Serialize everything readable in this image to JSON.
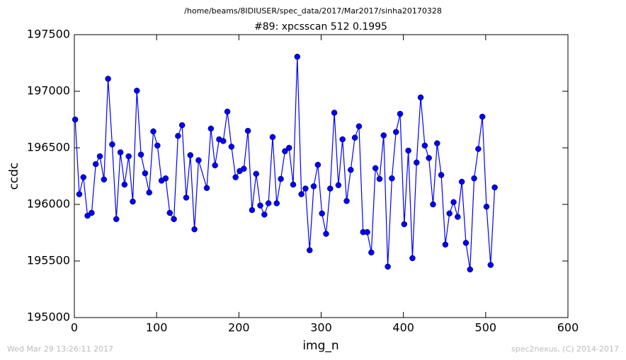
{
  "chart_data": {
    "type": "line",
    "suptitle": "/home/beams/8IDIUSER/spec_data/2017/Mar2017/sinha20170328",
    "title": "#89: xpcsscan 512 0.1995",
    "xlabel": "img_n",
    "ylabel": "ccdc",
    "footer_left": "Wed Mar 29 13:26:11 2017",
    "footer_right": "spec2nexus, (C) 2014-2017",
    "color": "#0000ff",
    "x": [
      1,
      6,
      11,
      16,
      21,
      26,
      31,
      36,
      41,
      46,
      51,
      56,
      61,
      66,
      71,
      76,
      81,
      86,
      91,
      96,
      101,
      106,
      111,
      116,
      121,
      126,
      131,
      136,
      141,
      146,
      151,
      161,
      166,
      171,
      176,
      181,
      186,
      191,
      196,
      201,
      206,
      211,
      216,
      221,
      226,
      231,
      236,
      241,
      246,
      251,
      256,
      261,
      266,
      271,
      276,
      281,
      286,
      291,
      296,
      301,
      306,
      311,
      316,
      321,
      326,
      331,
      336,
      341,
      346,
      351,
      356,
      361,
      366,
      371,
      376,
      381,
      386,
      391,
      396,
      401,
      406,
      411,
      416,
      421,
      426,
      431,
      436,
      441,
      446,
      451,
      456,
      461,
      466,
      471,
      476,
      481,
      486,
      491,
      496,
      501,
      506,
      511
    ],
    "values": [
      196750,
      196090,
      196240,
      195900,
      195925,
      196356,
      196425,
      196220,
      197110,
      196530,
      195870,
      196460,
      196175,
      196425,
      196025,
      197005,
      196440,
      196275,
      196105,
      196645,
      196520,
      196210,
      196230,
      195925,
      195870,
      196605,
      196700,
      196060,
      196435,
      195780,
      196390,
      196145,
      196670,
      196345,
      196575,
      196560,
      196820,
      196510,
      196240,
      196295,
      196315,
      196650,
      195950,
      196270,
      195990,
      195910,
      196010,
      196595,
      196010,
      196225,
      196470,
      196500,
      196175,
      197305,
      196090,
      196140,
      195595,
      196160,
      196350,
      195920,
      195740,
      196140,
      196810,
      196170,
      196575,
      196030,
      196305,
      196590,
      196690,
      195755,
      195755,
      195575,
      196320,
      196225,
      196610,
      195450,
      196230,
      196640,
      196800,
      195825,
      196475,
      195525,
      196370,
      196945,
      196520,
      196410,
      196000,
      196540,
      196260,
      195645,
      195920,
      196020,
      195890,
      196200,
      195660,
      195425,
      196230,
      196490,
      196775,
      195980,
      195465,
      196150
    ],
    "xlim": [
      0,
      600
    ],
    "xticks": [
      0,
      100,
      200,
      300,
      400,
      500,
      600
    ],
    "ylim": [
      195000,
      197500
    ],
    "yticks": [
      195000,
      195500,
      196000,
      196500,
      197000,
      197500
    ]
  }
}
